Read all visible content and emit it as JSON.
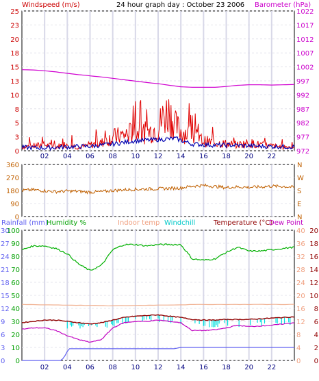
{
  "chart_data": [
    {
      "type": "line",
      "title": "24 hour graph day : October 23 2006",
      "left_axis_label": "Windspeed (m/s)",
      "right_axis_label": "Barometer (hPa)",
      "left_ticks": [
        "0",
        "3",
        "5",
        "8",
        "10",
        "13",
        "15",
        "18",
        "20",
        "23",
        "25"
      ],
      "right_ticks": [
        "972",
        "977",
        "982",
        "987",
        "992",
        "997",
        "1002",
        "1007",
        "1012",
        "1017",
        "1022"
      ],
      "left_range": [
        0,
        25
      ],
      "right_range": [
        972,
        1022
      ],
      "x_ticks": [
        "02",
        "04",
        "06",
        "08",
        "10",
        "12",
        "14",
        "16",
        "18",
        "20",
        "22"
      ],
      "x_range_hours": [
        0,
        24
      ],
      "grid": true,
      "series": [
        {
          "name": "Windspeed (m/s)",
          "color": "#e00000",
          "x": [
            0,
            1,
            2,
            3,
            4,
            5,
            6,
            7,
            8,
            9,
            10,
            11,
            12,
            12.5,
            13,
            13.5,
            14,
            15,
            16,
            17,
            18,
            19,
            20,
            21,
            22,
            23,
            24
          ],
          "values": [
            1.0,
            1.2,
            1.5,
            1.0,
            1.8,
            0.8,
            1.5,
            2.0,
            3.5,
            4.0,
            5.0,
            4.5,
            6.0,
            9.0,
            10.0,
            6.5,
            5.0,
            4.0,
            2.5,
            2.0,
            1.8,
            1.5,
            2.0,
            1.5,
            1.2,
            1.0,
            1.0
          ]
        },
        {
          "name": "Wind average",
          "color": "#0000b0",
          "x": [
            0,
            2,
            4,
            6,
            8,
            10,
            12,
            13.5,
            15,
            17,
            19,
            21,
            24
          ],
          "values": [
            0.6,
            0.5,
            0.7,
            0.8,
            1.2,
            1.8,
            2.0,
            2.2,
            1.2,
            1.0,
            1.0,
            0.8,
            0.7
          ]
        },
        {
          "name": "Barometer (hPa)",
          "color": "#d000d0",
          "axis": "right",
          "x": [
            0,
            1,
            2,
            3,
            4,
            5,
            6,
            7,
            8,
            9,
            10,
            11,
            12,
            13,
            14,
            15,
            16,
            17,
            18,
            19,
            20,
            21,
            22,
            23,
            24
          ],
          "values": [
            1001.0,
            1000.9,
            1000.6,
            1000.2,
            999.7,
            999.2,
            998.8,
            998.4,
            997.9,
            997.4,
            996.9,
            996.4,
            996.0,
            995.4,
            994.9,
            994.7,
            994.7,
            994.7,
            995.0,
            995.4,
            995.6,
            995.6,
            995.5,
            995.6,
            995.7
          ]
        }
      ]
    },
    {
      "type": "line",
      "left_ticks": [
        "360",
        "270",
        "180",
        "90",
        "0"
      ],
      "right_ticks": [
        "N",
        "W",
        "S",
        "E",
        "N"
      ],
      "left_range": [
        0,
        360
      ],
      "x_ticks": [
        "02",
        "04",
        "06",
        "08",
        "10",
        "12",
        "14",
        "16",
        "18",
        "20",
        "22"
      ],
      "grid": true,
      "series": [
        {
          "name": "Wind direction",
          "color": "#c06000",
          "x": [
            0,
            1,
            2,
            3,
            4,
            5,
            6,
            7,
            8,
            9,
            10,
            11,
            12,
            13,
            14,
            15,
            16,
            17,
            18,
            19,
            20,
            21,
            22,
            23,
            24
          ],
          "values": [
            180,
            185,
            178,
            172,
            176,
            174,
            168,
            172,
            180,
            185,
            188,
            190,
            192,
            195,
            198,
            210,
            215,
            208,
            200,
            205,
            202,
            205,
            210,
            208,
            202
          ]
        }
      ]
    },
    {
      "type": "line",
      "header_labels": {
        "rainfall": "Rainfall (mm)",
        "humidity": "Humidity %",
        "indoor": "Indoor temp",
        "windchill": "Windchill",
        "temperature": "Temperature (°C)",
        "dewpoint": "Dew Point"
      },
      "left_ticks_rain": [
        "0",
        "3",
        "6",
        "9",
        "12",
        "15",
        "18",
        "21",
        "24",
        "27",
        "30"
      ],
      "left_ticks_humidity": [
        "0",
        "10",
        "20",
        "30",
        "40",
        "50",
        "60",
        "70",
        "80",
        "90",
        "100"
      ],
      "right_ticks_indoor": [
        "0",
        "4",
        "8",
        "12",
        "16",
        "20",
        "24",
        "28",
        "32",
        "36",
        "40"
      ],
      "right_ticks_temp": [
        "0",
        "2",
        "4",
        "6",
        "8",
        "10",
        "12",
        "14",
        "16",
        "18",
        "20"
      ],
      "humidity_range": [
        0,
        100
      ],
      "temperature_range": [
        0,
        20
      ],
      "x_ticks": [
        "02",
        "04",
        "06",
        "08",
        "10",
        "12",
        "14",
        "16",
        "18",
        "20",
        "22"
      ],
      "grid": true,
      "series": [
        {
          "name": "Humidity %",
          "color": "#00b000",
          "axis": "humidity",
          "x": [
            0,
            1,
            2,
            3,
            4,
            5,
            6,
            7,
            8,
            9,
            10,
            11,
            12,
            13,
            14,
            15,
            16,
            17,
            18,
            19,
            20,
            21,
            22,
            23,
            24
          ],
          "values": [
            85,
            88,
            88,
            86,
            82,
            74,
            69,
            73,
            85,
            89,
            89,
            88,
            89,
            89,
            89,
            78,
            77,
            78,
            83,
            87,
            84,
            84,
            85,
            86,
            87
          ]
        },
        {
          "name": "Indoor temp",
          "color": "#f0b090",
          "axis": "temperature",
          "x": [
            0,
            4,
            8,
            12,
            16,
            20,
            24
          ],
          "values": [
            8.6,
            8.5,
            8.4,
            8.5,
            8.6,
            8.6,
            8.6
          ]
        },
        {
          "name": "Windchill",
          "color": "#00e0e0",
          "axis": "temperature",
          "x": [
            4,
            6,
            8,
            9,
            10,
            11,
            12,
            13,
            14,
            15,
            16,
            17,
            18,
            19,
            20,
            21,
            22,
            23,
            24
          ],
          "values": [
            5.5,
            5.5,
            5.6,
            6.2,
            6.4,
            6.4,
            6.5,
            6.3,
            6.0,
            5.8,
            5.6,
            5.6,
            5.8,
            5.7,
            5.8,
            5.9,
            5.8,
            5.9,
            6.0
          ]
        },
        {
          "name": "Temperature (°C)",
          "color": "#900000",
          "axis": "temperature",
          "x": [
            0,
            1,
            2,
            3,
            4,
            5,
            6,
            7,
            8,
            9,
            10,
            11,
            12,
            13,
            14,
            15,
            16,
            17,
            18,
            19,
            20,
            21,
            22,
            23,
            24
          ],
          "values": [
            5.8,
            6.0,
            6.2,
            6.2,
            6.0,
            5.8,
            5.6,
            5.8,
            6.2,
            6.6,
            6.8,
            6.9,
            7.0,
            6.8,
            6.6,
            6.3,
            6.2,
            6.2,
            6.3,
            6.3,
            6.3,
            6.4,
            6.5,
            6.6,
            6.7
          ]
        },
        {
          "name": "Dew Point",
          "color": "#c000c0",
          "axis": "temperature",
          "x": [
            0,
            1,
            2,
            3,
            4,
            5,
            6,
            7,
            8,
            9,
            10,
            11,
            12,
            13,
            14,
            15,
            16,
            17,
            18,
            19,
            20,
            21,
            22,
            23,
            24
          ],
          "values": [
            4.8,
            5.0,
            5.0,
            4.6,
            3.8,
            3.2,
            2.8,
            3.2,
            5.0,
            5.8,
            6.0,
            6.0,
            6.2,
            6.0,
            5.8,
            4.6,
            4.6,
            4.7,
            5.0,
            5.4,
            5.2,
            5.3,
            5.4,
            5.6,
            5.8
          ]
        },
        {
          "name": "Rainfall (mm)",
          "color": "#6060f0",
          "axis": "rain",
          "x": [
            0,
            3.5,
            3.9,
            4.1,
            6,
            10,
            13.4,
            14,
            18,
            24
          ],
          "values": [
            0,
            0,
            1.5,
            2.7,
            2.7,
            2.7,
            2.7,
            3.0,
            3.0,
            3.0
          ]
        }
      ]
    }
  ]
}
